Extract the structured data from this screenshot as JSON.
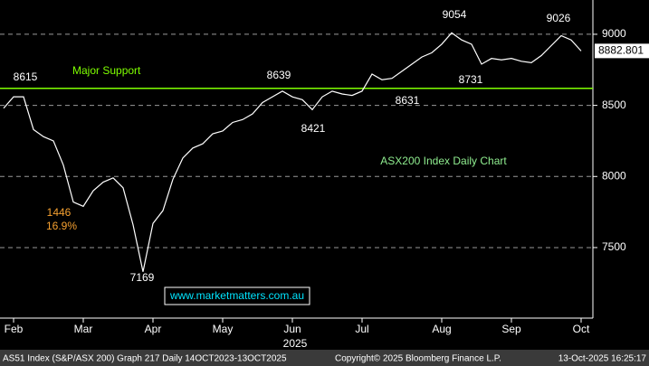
{
  "chart_data": {
    "type": "line",
    "title": "ASX200 Index Daily Chart",
    "xlabel": "2025",
    "categories": [
      null,
      "Feb",
      null,
      null,
      null,
      null,
      null,
      null,
      "Mar",
      null,
      null,
      null,
      null,
      null,
      null,
      "Apr",
      null,
      null,
      null,
      null,
      null,
      null,
      "May",
      null,
      null,
      null,
      null,
      null,
      null,
      "Jun",
      null,
      null,
      null,
      null,
      null,
      null,
      "Jul",
      null,
      null,
      null,
      null,
      null,
      null,
      null,
      "Aug",
      null,
      null,
      null,
      null,
      null,
      null,
      "Sep",
      null,
      null,
      null,
      null,
      null,
      null,
      "Oct"
    ],
    "series": [
      {
        "name": "AS51 Index",
        "color": "#ffffff",
        "values": [
          8480,
          8560,
          8560,
          8330,
          8280,
          8250,
          8080,
          7820,
          7790,
          7900,
          7960,
          7990,
          7920,
          7660,
          7330,
          7670,
          7760,
          7980,
          8130,
          8200,
          8230,
          8300,
          8320,
          8380,
          8400,
          8440,
          8520,
          8560,
          8600,
          8560,
          8540,
          8470,
          8560,
          8600,
          8580,
          8570,
          8600,
          8720,
          8680,
          8690,
          8740,
          8790,
          8840,
          8870,
          8930,
          9010,
          8960,
          8930,
          8790,
          8830,
          8820,
          8830,
          8810,
          8800,
          8850,
          8920,
          8990,
          8960,
          8882.801
        ]
      }
    ],
    "ylim": [
      7004,
      9241
    ],
    "yticks": [
      7500,
      8000,
      8500,
      9000
    ],
    "grid": true,
    "lines": [
      {
        "value": 8620,
        "label": "Major Support",
        "color": "#7fff00"
      }
    ],
    "annotations": [
      "8615",
      "8639",
      "8421",
      "8631",
      "9054",
      "8731",
      "9026",
      "7169",
      "1446",
      "16.9%"
    ],
    "website": "www.marketmatters.com.au",
    "footer": [
      "AS51 Index (S&P/ASX 200) Graph 217 Daily 14OCT2023-13OCT2025",
      "Copyright© 2025 Bloomberg Finance L.P.",
      "13-Oct-2025 16:25:17"
    ]
  }
}
